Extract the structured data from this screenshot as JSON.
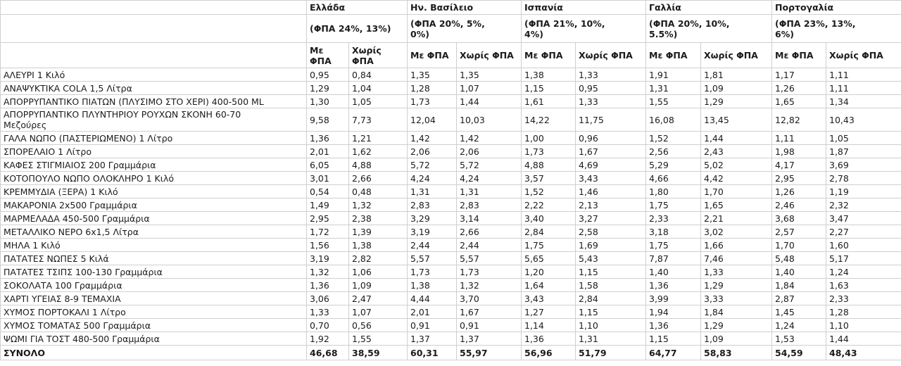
{
  "chart_data": {
    "type": "table",
    "title": "",
    "corner_label": "",
    "subheaders": {
      "with_vat": "Με ΦΠΑ",
      "without_vat": "Χωρίς ΦΠΑ"
    },
    "countries": [
      {
        "name": "Ελλάδα",
        "vat_rates": "(ΦΠΑ 24%, 13%)"
      },
      {
        "name": "Ην. Βασίλειο",
        "vat_rates": "(ΦΠΑ 20%, 5%,\n0%)"
      },
      {
        "name": "Ισπανία",
        "vat_rates": "(ΦΠΑ 21%, 10%,\n4%)"
      },
      {
        "name": "Γαλλία",
        "vat_rates": "(ΦΠΑ 20%, 10%,\n5.5%)"
      },
      {
        "name": "Πορτογαλία",
        "vat_rates": "(ΦΠΑ 23%, 13%,\n6%)"
      }
    ],
    "rows": [
      {
        "product": "ΑΛΕΥΡΙ 1 Κιλό",
        "values": [
          "0,95",
          "0,84",
          "1,35",
          "1,35",
          "1,38",
          "1,33",
          "1,91",
          "1,81",
          "1,17",
          "1,11"
        ]
      },
      {
        "product": "ΑΝΑΨΥΚΤΙΚΑ COLA 1,5 Λίτρα",
        "values": [
          "1,29",
          "1,04",
          "1,28",
          "1,07",
          "1,15",
          "0,95",
          "1,31",
          "1,09",
          "1,26",
          "1,11"
        ]
      },
      {
        "product": "ΑΠΟΡΡΥΠΑΝΤΙΚΟ ΠΙΑΤΩΝ (ΠΛΥΣΙΜΟ ΣΤΟ ΧΕΡΙ) 400-500 ML",
        "values": [
          "1,30",
          "1,05",
          "1,73",
          "1,44",
          "1,61",
          "1,33",
          "1,55",
          "1,29",
          "1,65",
          "1,34"
        ]
      },
      {
        "product": "ΑΠΟΡΡΥΠΑΝΤΙΚΟ ΠΛΥΝΤΗΡΙΟΥ ΡΟΥΧΩΝ ΣΚΟΝΗ 60-70\nΜεζούρες",
        "values": [
          "9,58",
          "7,73",
          "12,04",
          "10,03",
          "14,22",
          "11,75",
          "16,08",
          "13,45",
          "12,82",
          "10,43"
        ]
      },
      {
        "product": "ΓΑΛΑ ΝΩΠΟ (ΠΑΣΤΕΡΙΩΜΕΝΟ) 1 Λίτρο",
        "values": [
          "1,36",
          "1,21",
          "1,42",
          "1,42",
          "1,00",
          "0,96",
          "1,52",
          "1,44",
          "1,11",
          "1,05"
        ]
      },
      {
        "product": "ΣΠΟΡΕΛΑΙΟ 1 Λίτρο",
        "values": [
          "2,01",
          "1,62",
          "2,06",
          "2,06",
          "1,73",
          "1,67",
          "2,56",
          "2,43",
          "1,98",
          "1,87"
        ]
      },
      {
        "product": "ΚΑΦΕΣ ΣΤΙΓΜΙΑΙΟΣ 200 Γραμμάρια",
        "values": [
          "6,05",
          "4,88",
          "5,72",
          "5,72",
          "4,88",
          "4,69",
          "5,29",
          "5,02",
          "4,17",
          "3,69"
        ]
      },
      {
        "product": "ΚΟΤΟΠΟΥΛΟ ΝΩΠΟ ΟΛΟΚΛΗΡΟ 1 Κιλό",
        "values": [
          "3,01",
          "2,66",
          "4,24",
          "4,24",
          "3,57",
          "3,43",
          "4,66",
          "4,42",
          "2,95",
          "2,78"
        ]
      },
      {
        "product": "ΚΡΕΜΜΥΔΙΑ (ΞΕΡΑ) 1 Κιλό",
        "values": [
          "0,54",
          "0,48",
          "1,31",
          "1,31",
          "1,52",
          "1,46",
          "1,80",
          "1,70",
          "1,26",
          "1,19"
        ]
      },
      {
        "product": "ΜΑΚΑΡΟΝΙΑ 2x500 Γραμμάρια",
        "values": [
          "1,49",
          "1,32",
          "2,83",
          "2,83",
          "2,22",
          "2,13",
          "1,75",
          "1,65",
          "2,46",
          "2,32"
        ]
      },
      {
        "product": "ΜΑΡΜΕΛΑΔΑ 450-500 Γραμμάρια",
        "values": [
          "2,95",
          "2,38",
          "3,29",
          "3,14",
          "3,40",
          "3,27",
          "2,33",
          "2,21",
          "3,68",
          "3,47"
        ]
      },
      {
        "product": "ΜΕΤΑΛΛΙΚΟ ΝΕΡΟ 6x1,5 Λίτρα",
        "values": [
          "1,72",
          "1,39",
          "3,19",
          "2,66",
          "2,84",
          "2,58",
          "3,18",
          "3,02",
          "2,57",
          "2,27"
        ]
      },
      {
        "product": "ΜΗΛΑ 1 Κιλό",
        "values": [
          "1,56",
          "1,38",
          "2,44",
          "2,44",
          "1,75",
          "1,69",
          "1,75",
          "1,66",
          "1,70",
          "1,60"
        ]
      },
      {
        "product": "ΠΑΤΑΤΕΣ ΝΩΠΕΣ 5 Κιλά",
        "values": [
          "3,19",
          "2,82",
          "5,57",
          "5,57",
          "5,65",
          "5,43",
          "7,87",
          "7,46",
          "5,48",
          "5,17"
        ]
      },
      {
        "product": "ΠΑΤΑΤΕΣ ΤΣΙΠΣ 100-130 Γραμμάρια",
        "values": [
          "1,32",
          "1,06",
          "1,73",
          "1,73",
          "1,20",
          "1,15",
          "1,40",
          "1,33",
          "1,40",
          "1,24"
        ]
      },
      {
        "product": "ΣΟΚΟΛΑΤΑ 100 Γραμμάρια",
        "values": [
          "1,36",
          "1,09",
          "1,38",
          "1,32",
          "1,64",
          "1,58",
          "1,36",
          "1,29",
          "1,84",
          "1,63"
        ]
      },
      {
        "product": "ΧΑΡΤΙ ΥΓΕΙΑΣ 8-9 ΤΕΜΑΧΙΑ",
        "values": [
          "3,06",
          "2,47",
          "4,44",
          "3,70",
          "3,43",
          "2,84",
          "3,99",
          "3,33",
          "2,87",
          "2,33"
        ]
      },
      {
        "product": "ΧΥΜΟΣ ΠΟΡΤΟΚΑΛΙ 1 Λίτρο",
        "values": [
          "1,33",
          "1,07",
          "2,01",
          "1,67",
          "1,27",
          "1,15",
          "1,94",
          "1,84",
          "1,45",
          "1,28"
        ]
      },
      {
        "product": "ΧΥΜΟΣ ΤΟΜΑΤΑΣ 500 Γραμμάρια",
        "values": [
          "0,70",
          "0,56",
          "0,91",
          "0,91",
          "1,14",
          "1,10",
          "1,36",
          "1,29",
          "1,24",
          "1,10"
        ]
      },
      {
        "product": "ΨΩΜΙ ΓΙΑ ΤΟΣΤ 480-500 Γραμμάρια",
        "values": [
          "1,92",
          "1,55",
          "1,37",
          "1,37",
          "1,36",
          "1,31",
          "1,15",
          "1,09",
          "1,53",
          "1,44"
        ]
      }
    ],
    "total_row": {
      "label": "ΣΥΝΟΛΟ",
      "values": [
        "46,68",
        "38,59",
        "60,31",
        "55,97",
        "56,96",
        "51,79",
        "64,77",
        "58,83",
        "54,59",
        "48,43"
      ]
    },
    "colors": {
      "text": "#1b1b1b",
      "grid": "#cfcfcf",
      "background": "#ffffff"
    }
  }
}
